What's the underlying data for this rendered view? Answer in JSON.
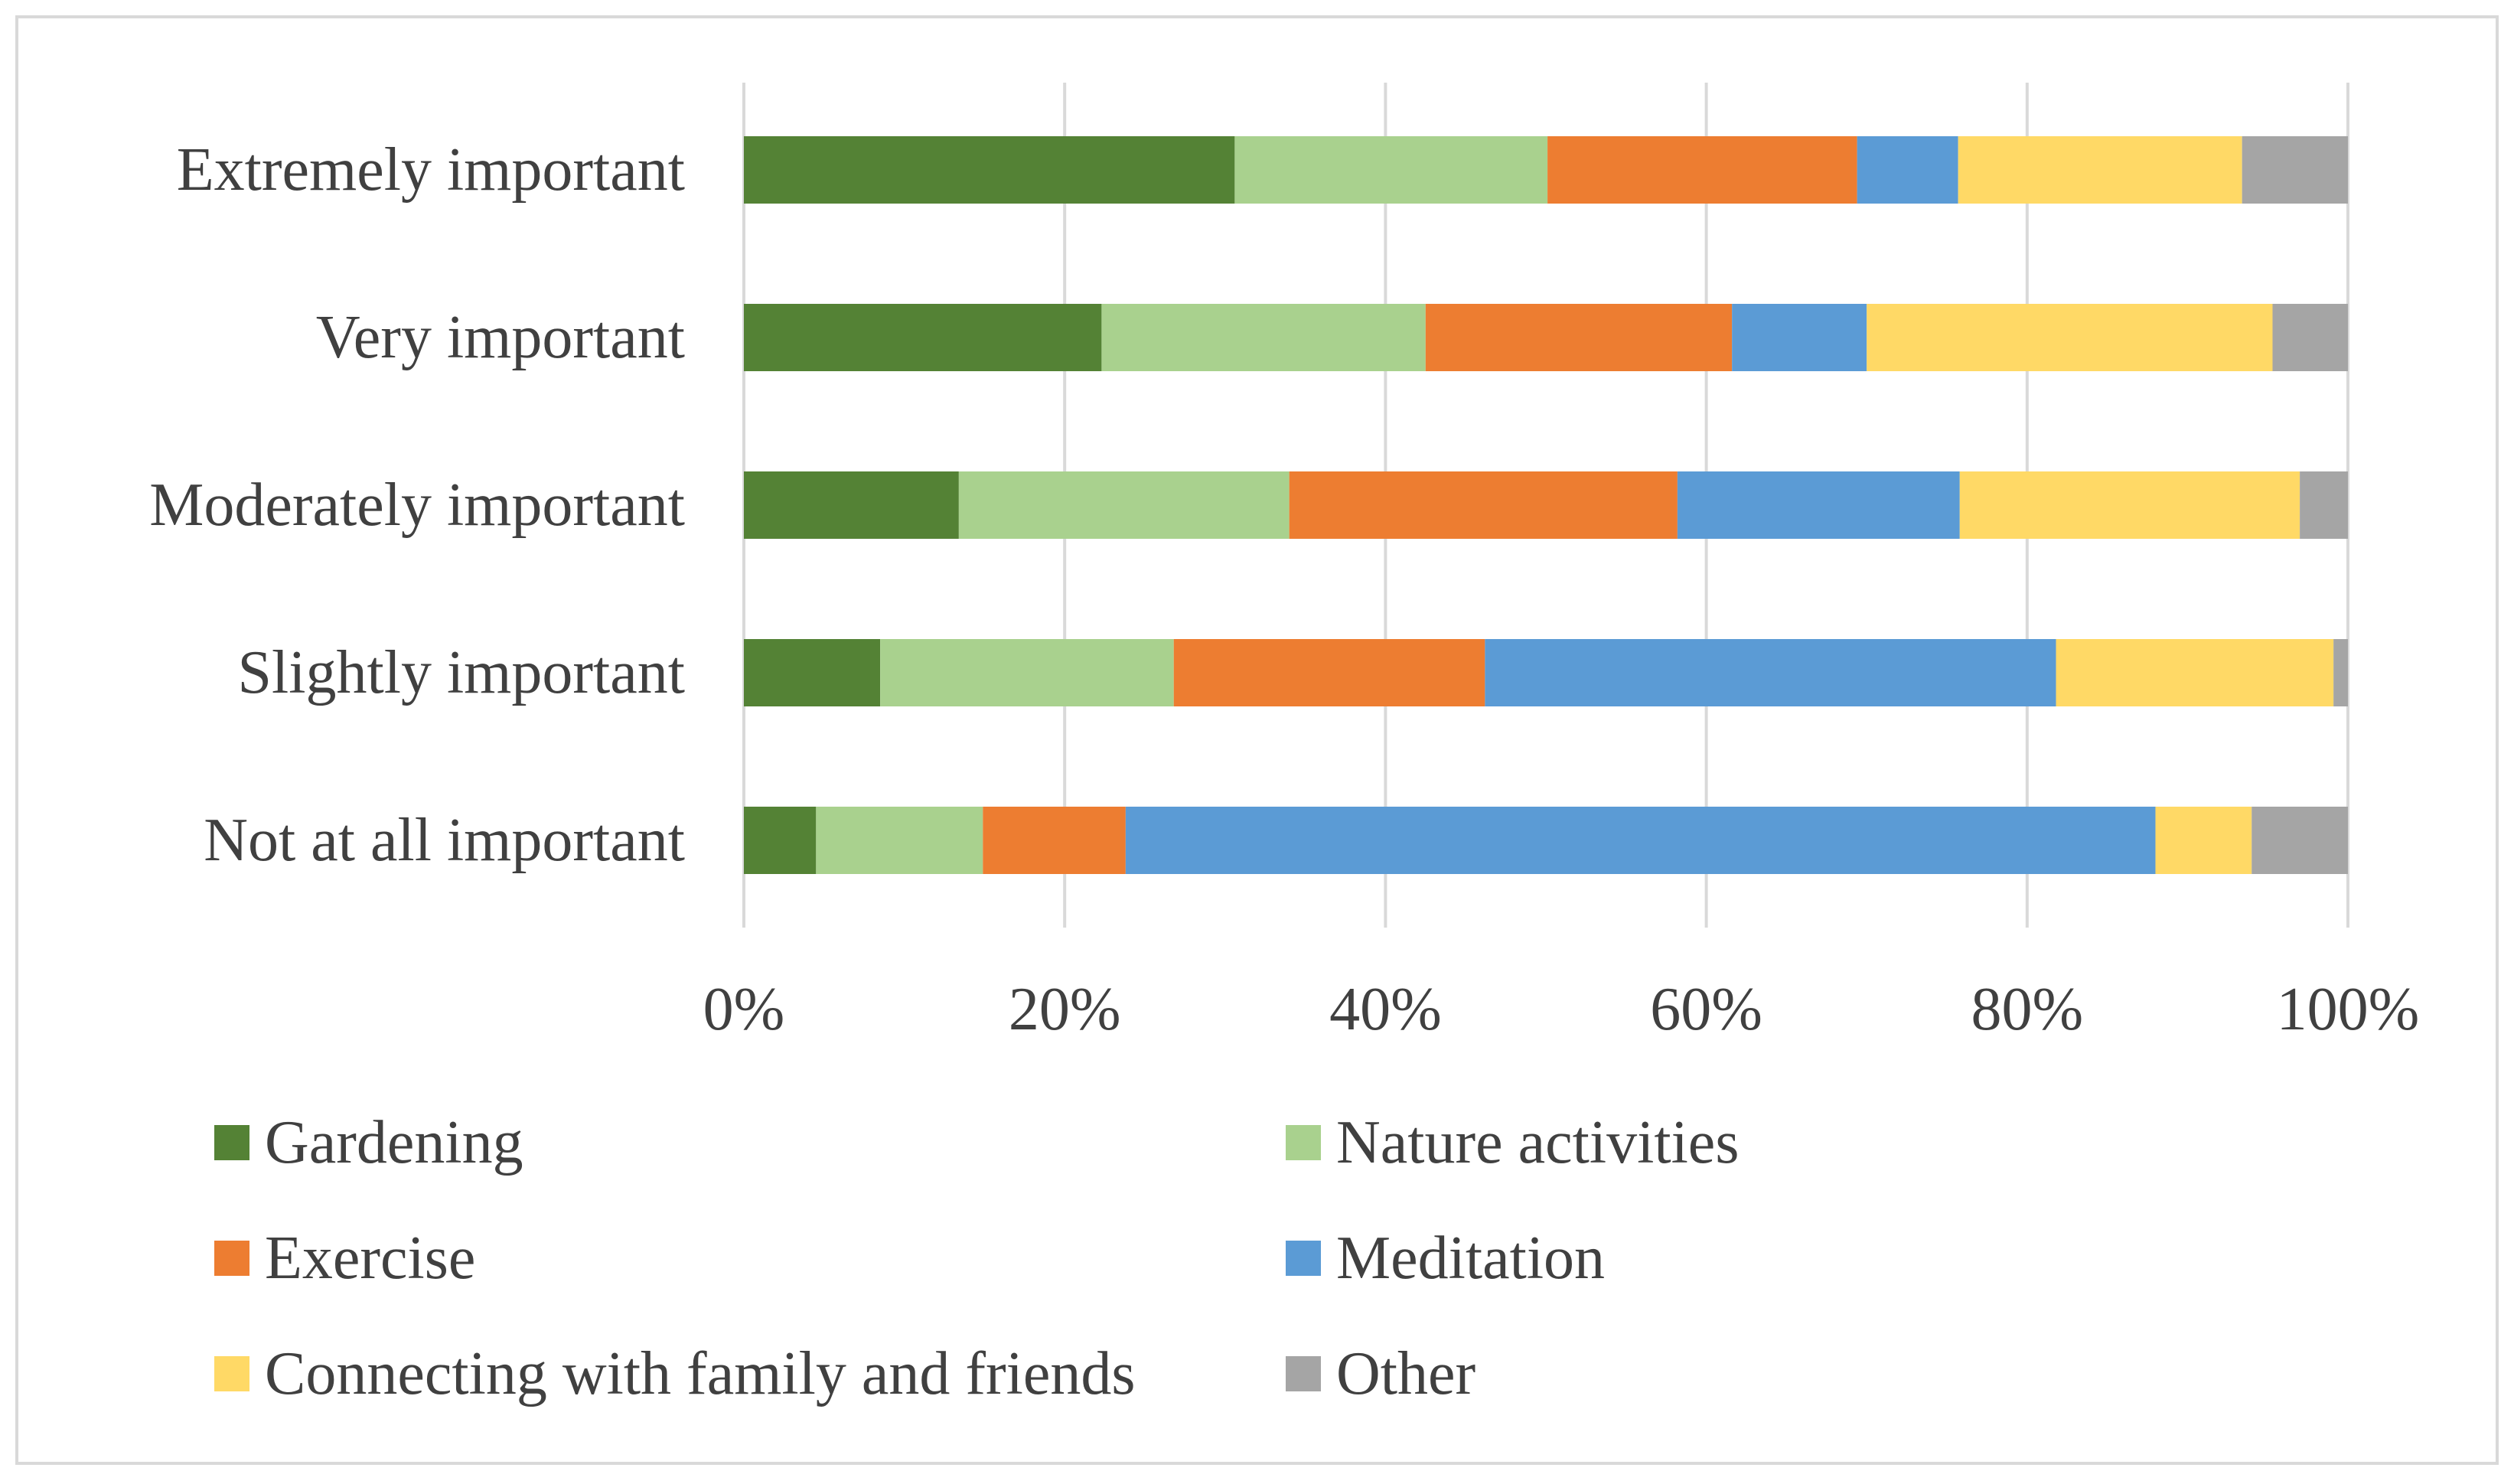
{
  "chart_data": {
    "type": "bar",
    "orientation": "horizontal",
    "stacked": "percent",
    "categories": [
      "Extremely important",
      "Very important",
      "Moderately important",
      "Slightly important",
      "Not at all important"
    ],
    "series": [
      {
        "name": "Gardening",
        "color": "#548235",
        "values": [
          30.6,
          22.3,
          13.4,
          8.5,
          4.5
        ]
      },
      {
        "name": "Nature activities",
        "color": "#A9D18E",
        "values": [
          19.5,
          20.2,
          20.6,
          18.3,
          10.4
        ]
      },
      {
        "name": "Exercise",
        "color": "#ED7D31",
        "values": [
          19.3,
          19.1,
          24.2,
          19.4,
          8.9
        ]
      },
      {
        "name": "Meditation",
        "color": "#5B9BD5",
        "values": [
          6.3,
          8.4,
          17.6,
          35.6,
          64.2
        ]
      },
      {
        "name": "Connecting with family and friends",
        "color": "#FFD966",
        "values": [
          17.7,
          25.3,
          21.2,
          17.3,
          6.0
        ]
      },
      {
        "name": "Other",
        "color": "#A5A5A5",
        "values": [
          6.6,
          4.7,
          3.0,
          0.9,
          6.0
        ]
      }
    ],
    "x_ticks": [
      "0%",
      "20%",
      "40%",
      "60%",
      "80%",
      "100%"
    ],
    "xlim": [
      0,
      100
    ],
    "grid": "vertical",
    "legend_position": "bottom",
    "title": "",
    "xlabel": "",
    "ylabel": ""
  }
}
